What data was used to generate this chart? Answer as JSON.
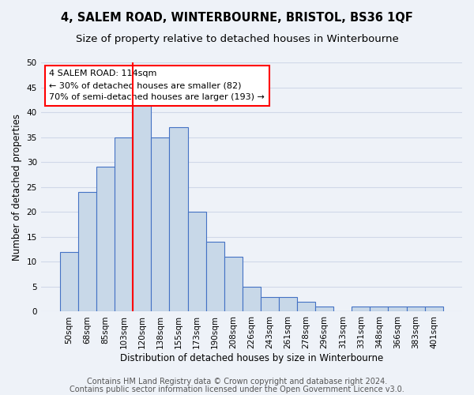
{
  "title": "4, SALEM ROAD, WINTERBOURNE, BRISTOL, BS36 1QF",
  "subtitle": "Size of property relative to detached houses in Winterbourne",
  "xlabel": "Distribution of detached houses by size in Winterbourne",
  "ylabel": "Number of detached properties",
  "bar_labels": [
    "50sqm",
    "68sqm",
    "85sqm",
    "103sqm",
    "120sqm",
    "138sqm",
    "155sqm",
    "173sqm",
    "190sqm",
    "208sqm",
    "226sqm",
    "243sqm",
    "261sqm",
    "278sqm",
    "296sqm",
    "313sqm",
    "331sqm",
    "348sqm",
    "366sqm",
    "383sqm",
    "401sqm"
  ],
  "bar_values": [
    12,
    24,
    29,
    35,
    42,
    35,
    37,
    20,
    14,
    11,
    5,
    3,
    3,
    2,
    1,
    0,
    1,
    1,
    1,
    1,
    1
  ],
  "bar_color": "#c8d8e8",
  "bar_edge_color": "#4472c4",
  "grid_color": "#d0d8e8",
  "background_color": "#eef2f8",
  "property_sqm": 114,
  "red_line_bin_index": 4,
  "annotation_line1": "4 SALEM ROAD: 114sqm",
  "annotation_line2": "← 30% of detached houses are smaller (82)",
  "annotation_line3": "70% of semi-detached houses are larger (193) →",
  "footer_line1": "Contains HM Land Registry data © Crown copyright and database right 2024.",
  "footer_line2": "Contains public sector information licensed under the Open Government Licence v3.0.",
  "ylim": [
    0,
    50
  ],
  "yticks": [
    0,
    5,
    10,
    15,
    20,
    25,
    30,
    35,
    40,
    45,
    50
  ],
  "title_fontsize": 10.5,
  "subtitle_fontsize": 9.5,
  "axis_label_fontsize": 8.5,
  "tick_fontsize": 7.5,
  "annotation_fontsize": 8,
  "footer_fontsize": 7
}
